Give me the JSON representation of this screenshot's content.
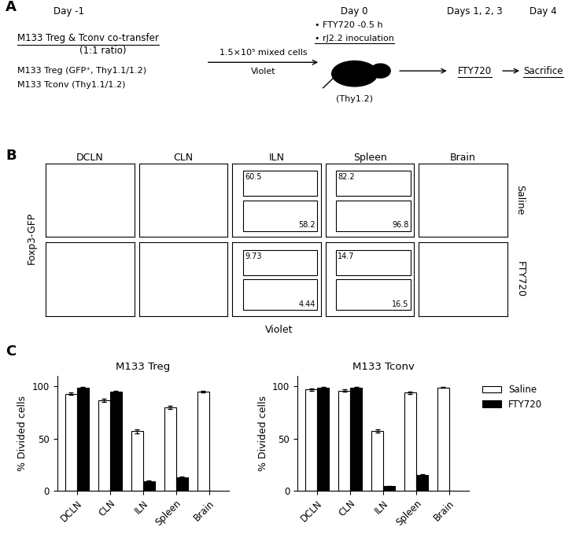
{
  "panel_a": {
    "label": "A",
    "days": [
      "Day -1",
      "Day 0",
      "Days 1, 2, 3",
      "Day 4"
    ],
    "transfer": {
      "title": "M133 Treg & Tconv co-transfer",
      "ratio": "(1:1 ratio)",
      "treg": "M133 Treg (GFP⁺, Thy1.1/1.2)",
      "tconv": "M133 Tconv (Thy1.1/1.2)"
    },
    "cells": "1.5×10⁵ mixed cells",
    "dye": "Violet",
    "day0_steps": [
      "• FTY720 -0.5 h",
      "• rJ2.2 inoculation"
    ],
    "mouse": "(Thy1.2)",
    "treatment": "FTY720",
    "end": "Sacrifice"
  },
  "panel_b": {
    "label": "B",
    "columns": [
      "DCLN",
      "CLN",
      "ILN",
      "Spleen",
      "Brain"
    ],
    "rows": [
      "Saline",
      "FTY720"
    ],
    "xlabel": "Violet",
    "ylabel": "Foxp3-GFP",
    "gates": [
      {
        "row": "Saline",
        "column": "ILN",
        "upper": 60.5,
        "lower": 58.2
      },
      {
        "row": "Saline",
        "column": "Spleen",
        "upper": 82.2,
        "lower": 96.8
      },
      {
        "row": "FTY720",
        "column": "ILN",
        "upper": 9.73,
        "lower": 4.44
      },
      {
        "row": "FTY720",
        "column": "Spleen",
        "upper": 14.7,
        "lower": 16.5
      }
    ]
  },
  "panel_c": {
    "label": "C"
  },
  "chart_data": [
    {
      "type": "bar",
      "title": "M133 Treg",
      "ylabel": "% Divided cells",
      "categories": [
        "DCLN",
        "CLN",
        "ILN",
        "Spleen",
        "Brain"
      ],
      "series": [
        {
          "name": "Saline",
          "color": "#ffffff",
          "values": [
            93,
            87,
            57,
            80,
            95
          ],
          "errors": [
            1,
            1.5,
            2,
            1.5,
            0.5
          ]
        },
        {
          "name": "FTY720",
          "color": "#000000",
          "values": [
            99,
            95,
            9,
            13,
            null
          ],
          "errors": [
            0.5,
            0.5,
            0.5,
            0.5,
            null
          ]
        }
      ],
      "ylim": [
        0,
        110
      ],
      "yticks": [
        0,
        50,
        100
      ]
    },
    {
      "type": "bar",
      "title": "M133 Tconv",
      "ylabel": "% Divided cells",
      "categories": [
        "DCLN",
        "CLN",
        "ILN",
        "Spleen",
        "Brain"
      ],
      "series": [
        {
          "name": "Saline",
          "color": "#ffffff",
          "values": [
            97,
            96,
            57,
            94,
            99
          ],
          "errors": [
            1,
            1,
            1.5,
            1,
            0.5
          ]
        },
        {
          "name": "FTY720",
          "color": "#000000",
          "values": [
            99,
            99,
            4,
            15,
            null
          ],
          "errors": [
            0.5,
            0.5,
            0.5,
            0.5,
            null
          ]
        }
      ],
      "ylim": [
        0,
        110
      ],
      "yticks": [
        0,
        50,
        100
      ],
      "legend": "right"
    }
  ]
}
